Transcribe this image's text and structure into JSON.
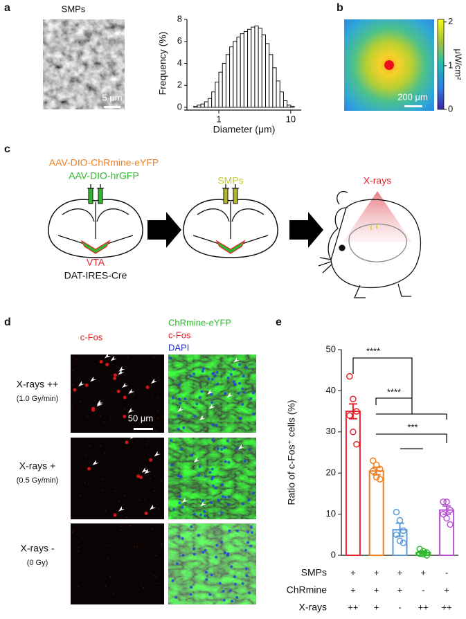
{
  "panel_labels": [
    "a",
    "b",
    "c",
    "d",
    "e"
  ],
  "panel_a": {
    "title": "SMPs",
    "scale_bar": "5 μm"
  },
  "panel_b": {
    "scale_bar": "200 μm",
    "colorbar": {
      "label": "μW/cm²",
      "clim": [
        0,
        2.06
      ],
      "ticks": [
        0,
        1,
        2
      ]
    }
  },
  "panel_c": {
    "virus_1": "AAV-DIO-ChRmine-eYFP",
    "virus_2": "AAV-DIO-hrGFP",
    "region": "VTA",
    "mouse_line": "DAT-IRES-Cre",
    "injection": "SMPs",
    "stimulus": "X-rays"
  },
  "panel_d": {
    "column_1": "c-Fos",
    "column_2": [
      "ChRmine-eYFP",
      "c-Fos",
      "DAPI"
    ],
    "rows": [
      {
        "label": "X-rays ++",
        "dose": "(1.0 Gy/min)"
      },
      {
        "label": "X-rays +",
        "dose": "(0.5 Gy/min)"
      },
      {
        "label": "X-rays -",
        "dose": "(0 Gy)"
      }
    ],
    "scale_bar": "50 μm"
  },
  "chart_data": [
    {
      "type": "histogram",
      "xlabel": "Diameter (μm)",
      "ylabel": "Frequency (%)",
      "bins": [
        0.447,
        0.501,
        0.562,
        0.631,
        0.708,
        0.794,
        0.891,
        1,
        1.122,
        1.259,
        1.413,
        1.585,
        1.778,
        1.995,
        2.239,
        2.512,
        2.818,
        3.162,
        3.548,
        3.981,
        4.467,
        5.012,
        5.623,
        6.31,
        7.079,
        7.943,
        8.913,
        10,
        11.22
      ],
      "values": [
        0.1,
        0.2,
        0.3,
        0.5,
        0.8,
        1.4,
        2.3,
        3.2,
        4.0,
        4.8,
        5.5,
        6.0,
        6.4,
        6.7,
        6.9,
        7.1,
        7.3,
        7.4,
        7.2,
        6.6,
        5.8,
        4.8,
        3.6,
        2.4,
        1.4,
        0.6,
        0.2,
        0.1
      ],
      "color": "#ffffff",
      "xscale": "log",
      "xlim": [
        0.36,
        14
      ],
      "xticks": [
        1,
        10
      ],
      "ylim": [
        0,
        8
      ],
      "yticks": [
        0,
        2,
        4,
        6,
        8
      ]
    },
    {
      "type": "bar",
      "ylabel": "Ratio of c-Fos⁺ cells (%)",
      "values": [
        35,
        20.5,
        6.2,
        0.7,
        11
      ],
      "errors": [
        1.8,
        0.9,
        1.6,
        0.3,
        1.0
      ],
      "colors": [
        "#e8202a",
        "#f07f1f",
        "#5b9bd5",
        "#2eb82e",
        "#b552d2"
      ],
      "points": [
        [
          43.5,
          38,
          35,
          34,
          30,
          27
        ],
        [
          23,
          22,
          21,
          20.5,
          19,
          18.5
        ],
        [
          10.5,
          8.5,
          6,
          5,
          3.5,
          3
        ],
        [
          1.5,
          1,
          0.7,
          0.4,
          0.3,
          0
        ],
        [
          13,
          13,
          11,
          10,
          9,
          7.5
        ]
      ],
      "ylim": [
        0,
        50
      ],
      "yticks": [
        0,
        10,
        20,
        30,
        40,
        50
      ],
      "annotations": [
        "****",
        "****",
        "***"
      ],
      "conditions": [
        {
          "name": "SMPs",
          "values": [
            "+",
            "+",
            "+",
            "+",
            "-"
          ]
        },
        {
          "name": "ChRmine",
          "values": [
            "+",
            "+",
            "+",
            "-",
            "+"
          ]
        },
        {
          "name": "X-rays",
          "values": [
            "++",
            "+",
            "-",
            "++",
            "++"
          ]
        }
      ]
    }
  ]
}
